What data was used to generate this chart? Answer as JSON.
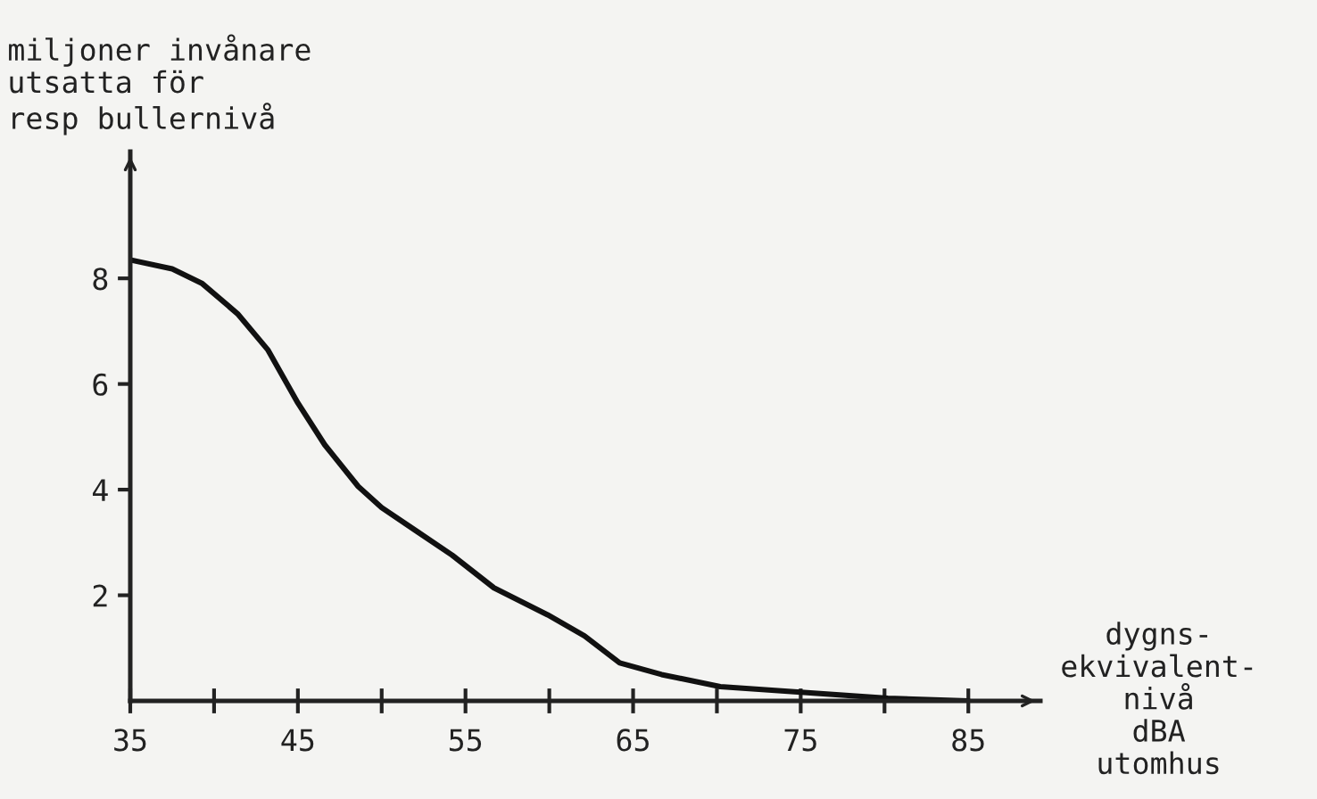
{
  "chart_data": {
    "type": "line",
    "ylabel": "miljoner invånare\nutsatta för\nresp bullernivå",
    "xlabel": "dygns-\nekvivalent-\nnivå\ndBA\nutomhus",
    "series": [
      {
        "color": "#111111",
        "x": [
          35,
          37.5,
          39.3,
          41.4,
          43.2,
          45.0,
          46.6,
          48.6,
          50.0,
          52.1,
          54.2,
          56.7,
          59.9,
          62.1,
          64.2,
          66.7,
          70.2,
          75.2,
          80.2,
          85
        ],
        "values": [
          8.35,
          8.18,
          7.9,
          7.33,
          6.65,
          5.64,
          4.85,
          4.06,
          3.66,
          3.21,
          2.76,
          2.14,
          1.63,
          1.23,
          0.72,
          0.5,
          0.27,
          0.16,
          0.05,
          0
        ]
      }
    ],
    "xlim": [
      35,
      89.3
    ],
    "ylim": [
      0,
      10.4
    ],
    "xticks": [
      35,
      {
        "value": 40,
        "label": null
      },
      45,
      {
        "value": 50,
        "label": null
      },
      55,
      {
        "value": 60,
        "label": null
      },
      65,
      {
        "value": 70,
        "label": null
      },
      75,
      {
        "value": 80,
        "label": null
      },
      85
    ],
    "yticks": [
      2,
      4,
      6,
      8
    ],
    "grid": false,
    "legend": false,
    "marker": "none",
    "line_style": "solid"
  }
}
